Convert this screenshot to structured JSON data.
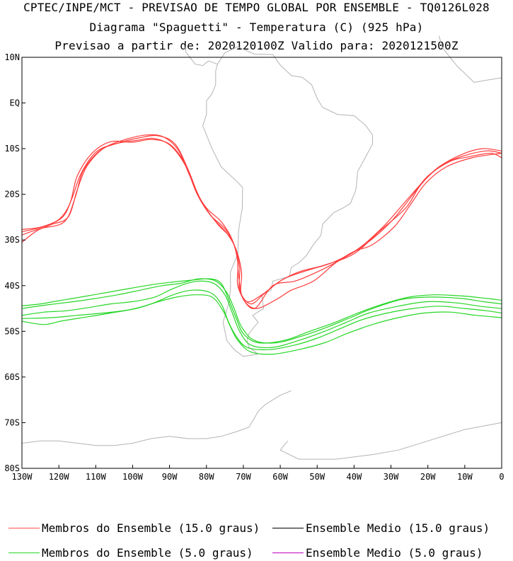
{
  "header": {
    "line1": "CPTEC/INPE/MCT - PREVISAO DE TEMPO GLOBAL POR ENSEMBLE - TQ0126L028",
    "line2": "Diagrama \"Spaguetti\" - Temperatura (C) (925 hPa)",
    "line3": "Previsao a partir de: 2020120100Z  Valido para: 2020121500Z"
  },
  "map": {
    "lat_labels": [
      "10N",
      "EQ",
      "10S",
      "20S",
      "30S",
      "40S",
      "50S",
      "60S",
      "70S",
      "80S"
    ],
    "lat_values": [
      10,
      0,
      -10,
      -20,
      -30,
      -40,
      -50,
      -60,
      -70,
      -80
    ],
    "lon_labels": [
      "130W",
      "120W",
      "110W",
      "100W",
      "90W",
      "80W",
      "70W",
      "60W",
      "50W",
      "40W",
      "30W",
      "20W",
      "10W",
      "0"
    ],
    "lon_values": [
      -130,
      -120,
      -110,
      -100,
      -90,
      -80,
      -70,
      -60,
      -50,
      -40,
      -30,
      -20,
      -10,
      0
    ],
    "lon_range": [
      -130,
      0
    ],
    "lat_range": [
      -80,
      10
    ],
    "coastline_color": "#b4b4b4",
    "contours": [
      {
        "name": "Membros do Ensemble (15.0 graus)",
        "color": "#ff3b3b",
        "value": 15.0,
        "members": [
          [
            [
              -130,
              -27.7
            ],
            [
              -125,
              -27.2
            ],
            [
              -120,
              -25.5
            ],
            [
              -117,
              -22
            ],
            [
              -115,
              -16
            ],
            [
              -111,
              -11
            ],
            [
              -106,
              -8.5
            ],
            [
              -100,
              -8.6
            ],
            [
              -95,
              -8
            ],
            [
              -90,
              -9
            ],
            [
              -86,
              -13
            ],
            [
              -83,
              -19
            ],
            [
              -80,
              -23
            ],
            [
              -76,
              -26
            ],
            [
              -73,
              -30
            ],
            [
              -71.5,
              -35
            ],
            [
              -71.5,
              -40
            ],
            [
              -69,
              -43.5
            ],
            [
              -65,
              -42
            ],
            [
              -60,
              -39
            ],
            [
              -55,
              -37
            ],
            [
              -48,
              -35.5
            ],
            [
              -40,
              -33
            ],
            [
              -33,
              -28
            ],
            [
              -26,
              -23
            ],
            [
              -22,
              -18
            ],
            [
              -17,
              -14
            ],
            [
              -10,
              -11
            ],
            [
              -5,
              -10
            ],
            [
              0,
              -10.5
            ]
          ],
          [
            [
              -130,
              -28.2
            ],
            [
              -124,
              -27
            ],
            [
              -119,
              -25
            ],
            [
              -116.5,
              -21
            ],
            [
              -114,
              -15.5
            ],
            [
              -110,
              -10.8
            ],
            [
              -105,
              -9
            ],
            [
              -99,
              -8.2
            ],
            [
              -94,
              -7.8
            ],
            [
              -89.5,
              -9.5
            ],
            [
              -85.5,
              -14
            ],
            [
              -82.5,
              -20
            ],
            [
              -79,
              -24.5
            ],
            [
              -75,
              -27.5
            ],
            [
              -72.5,
              -31
            ],
            [
              -71,
              -36
            ],
            [
              -71,
              -41
            ],
            [
              -68,
              -44
            ],
            [
              -64,
              -41.5
            ],
            [
              -59,
              -38.5
            ],
            [
              -52,
              -36.5
            ],
            [
              -46,
              -35
            ],
            [
              -39,
              -32
            ],
            [
              -32,
              -27
            ],
            [
              -26,
              -21.5
            ],
            [
              -21,
              -17
            ],
            [
              -16,
              -13.5
            ],
            [
              -10,
              -11.5
            ],
            [
              -4,
              -10.5
            ],
            [
              0,
              -11
            ]
          ],
          [
            [
              -130,
              -28.9
            ],
            [
              -125,
              -27.5
            ],
            [
              -118.5,
              -26
            ],
            [
              -115.5,
              -20.5
            ],
            [
              -113.5,
              -15
            ],
            [
              -109,
              -10.5
            ],
            [
              -104,
              -8.8
            ],
            [
              -98,
              -7.6
            ],
            [
              -93,
              -7.2
            ],
            [
              -88.5,
              -9
            ],
            [
              -85,
              -14.5
            ],
            [
              -82,
              -20.5
            ],
            [
              -78.5,
              -25
            ],
            [
              -74.5,
              -28.5
            ],
            [
              -72,
              -32
            ],
            [
              -70.5,
              -37
            ],
            [
              -70.5,
              -42
            ],
            [
              -67,
              -45
            ],
            [
              -62,
              -40
            ],
            [
              -56,
              -39
            ],
            [
              -50,
              -37
            ],
            [
              -44,
              -34.5
            ],
            [
              -37,
              -31
            ],
            [
              -30,
              -26
            ],
            [
              -24,
              -20
            ],
            [
              -20,
              -16
            ],
            [
              -14,
              -12.8
            ],
            [
              -9,
              -11.8
            ],
            [
              -3,
              -11
            ],
            [
              0,
              -12
            ]
          ],
          [
            [
              -130,
              -30.5
            ],
            [
              -126,
              -28
            ],
            [
              -122,
              -26.6
            ],
            [
              -117.5,
              -25
            ],
            [
              -115,
              -19
            ],
            [
              -112.5,
              -14
            ],
            [
              -108,
              -10
            ],
            [
              -102,
              -8
            ],
            [
              -96,
              -7
            ],
            [
              -91.5,
              -7.5
            ],
            [
              -87.5,
              -10.5
            ],
            [
              -84.5,
              -16
            ],
            [
              -81,
              -22
            ],
            [
              -77,
              -26.5
            ],
            [
              -73.5,
              -29.5
            ],
            [
              -71.8,
              -33
            ],
            [
              -71.2,
              -38.5
            ],
            [
              -70,
              -43
            ],
            [
              -66.5,
              -45
            ],
            [
              -61,
              -43
            ],
            [
              -57,
              -41
            ],
            [
              -51,
              -39
            ],
            [
              -45,
              -35
            ],
            [
              -40,
              -32.5
            ],
            [
              -35,
              -31
            ],
            [
              -29,
              -27
            ],
            [
              -24.5,
              -22
            ],
            [
              -20.5,
              -17.5
            ],
            [
              -15,
              -14
            ],
            [
              -8,
              -12
            ],
            [
              0,
              -11
            ]
          ]
        ]
      },
      {
        "name": "Ensemble Medio (15.0 graus)",
        "color": "#000000",
        "value": 15.0,
        "members": []
      },
      {
        "name": "Membros do Ensemble (5.0 graus)",
        "color": "#25d625",
        "value": 5.0,
        "members": [
          [
            [
              -130,
              -46.5
            ],
            [
              -124,
              -45.8
            ],
            [
              -118,
              -45.5
            ],
            [
              -112,
              -44.8
            ],
            [
              -106,
              -44
            ],
            [
              -100,
              -43.5
            ],
            [
              -94,
              -42.5
            ],
            [
              -90,
              -41
            ],
            [
              -86,
              -39.7
            ],
            [
              -82,
              -39
            ],
            [
              -78,
              -39.5
            ],
            [
              -75,
              -42
            ],
            [
              -73,
              -46
            ],
            [
              -71,
              -50
            ],
            [
              -68,
              -53
            ],
            [
              -62,
              -53.5
            ],
            [
              -55,
              -52
            ],
            [
              -48,
              -50
            ],
            [
              -42,
              -48
            ],
            [
              -36,
              -46
            ],
            [
              -28,
              -44.5
            ],
            [
              -20,
              -43.5
            ],
            [
              -12,
              -43.8
            ],
            [
              -6,
              -44.5
            ],
            [
              0,
              -45
            ]
          ],
          [
            [
              -130,
              -47.2
            ],
            [
              -122,
              -47
            ],
            [
              -115,
              -46.5
            ],
            [
              -108,
              -46
            ],
            [
              -101,
              -45.3
            ],
            [
              -95,
              -44
            ],
            [
              -89,
              -42
            ],
            [
              -84,
              -41
            ],
            [
              -79,
              -41.5
            ],
            [
              -76,
              -44
            ],
            [
              -74,
              -48
            ],
            [
              -72,
              -51
            ],
            [
              -69,
              -53.5
            ],
            [
              -63,
              -54
            ],
            [
              -56,
              -53
            ],
            [
              -50,
              -51.5
            ],
            [
              -44,
              -49.5
            ],
            [
              -38,
              -47.5
            ],
            [
              -31,
              -46
            ],
            [
              -24,
              -45
            ],
            [
              -17,
              -44.5
            ],
            [
              -10,
              -45
            ],
            [
              -4,
              -45.5
            ],
            [
              0,
              -46
            ]
          ],
          [
            [
              -130,
              -45
            ],
            [
              -123,
              -44.2
            ],
            [
              -116,
              -43.5
            ],
            [
              -110,
              -42.8
            ],
            [
              -104,
              -42
            ],
            [
              -98,
              -41
            ],
            [
              -92,
              -40
            ],
            [
              -87,
              -39.5
            ],
            [
              -82,
              -38.5
            ],
            [
              -77.5,
              -39
            ],
            [
              -74.5,
              -41.5
            ],
            [
              -72.5,
              -45
            ],
            [
              -70.5,
              -49
            ],
            [
              -67,
              -52
            ],
            [
              -61,
              -52.5
            ],
            [
              -54,
              -51
            ],
            [
              -47,
              -49
            ],
            [
              -41,
              -47
            ],
            [
              -35,
              -45
            ],
            [
              -27,
              -43
            ],
            [
              -19,
              -42.5
            ],
            [
              -11,
              -42.8
            ],
            [
              -5,
              -43.5
            ],
            [
              0,
              -44
            ]
          ],
          [
            [
              -130,
              -47.8
            ],
            [
              -124,
              -48.5
            ],
            [
              -119,
              -47.7
            ],
            [
              -112,
              -46.8
            ],
            [
              -106,
              -46
            ],
            [
              -99,
              -45
            ],
            [
              -93,
              -43.5
            ],
            [
              -88,
              -42.5
            ],
            [
              -83,
              -42
            ],
            [
              -78.5,
              -42.5
            ],
            [
              -75.5,
              -45.5
            ],
            [
              -73.5,
              -49
            ],
            [
              -71.5,
              -52
            ],
            [
              -68,
              -54.5
            ],
            [
              -62,
              -55
            ],
            [
              -55,
              -54
            ],
            [
              -48,
              -52.5
            ],
            [
              -42,
              -50.5
            ],
            [
              -35,
              -48.5
            ],
            [
              -28,
              -47
            ],
            [
              -21,
              -46
            ],
            [
              -14,
              -45.8
            ],
            [
              -7,
              -46.5
            ],
            [
              0,
              -47
            ]
          ],
          [
            [
              -130,
              -44.4
            ],
            [
              -125,
              -44
            ],
            [
              -120,
              -43.3
            ],
            [
              -114,
              -42.5
            ],
            [
              -107,
              -41.5
            ],
            [
              -100,
              -40.5
            ],
            [
              -94,
              -39.7
            ],
            [
              -89,
              -39.2
            ],
            [
              -84,
              -38.8
            ],
            [
              -79,
              -38.5
            ],
            [
              -76,
              -39.5
            ],
            [
              -74,
              -43
            ],
            [
              -72,
              -47
            ],
            [
              -70,
              -50.5
            ],
            [
              -66,
              -52.5
            ],
            [
              -59,
              -52
            ],
            [
              -52,
              -50
            ],
            [
              -45,
              -48
            ],
            [
              -39,
              -46
            ],
            [
              -32,
              -44
            ],
            [
              -25,
              -42.5
            ],
            [
              -18,
              -42
            ],
            [
              -10,
              -42.3
            ],
            [
              -4,
              -42.8
            ],
            [
              0,
              -43.2
            ]
          ]
        ]
      },
      {
        "name": "Ensemble Medio (5.0 graus)",
        "color": "#c000c0",
        "value": 5.0,
        "members": []
      }
    ]
  },
  "legend": [
    {
      "label": "Membros do Ensemble (15.0 graus)",
      "color": "#ff5050"
    },
    {
      "label": "Ensemble Medio (15.0 graus)",
      "color": "#000000"
    },
    {
      "label": "Membros do Ensemble (5.0 graus)",
      "color": "#25d625"
    },
    {
      "label": "Ensemble Medio (5.0 graus)",
      "color": "#c000c0"
    }
  ]
}
